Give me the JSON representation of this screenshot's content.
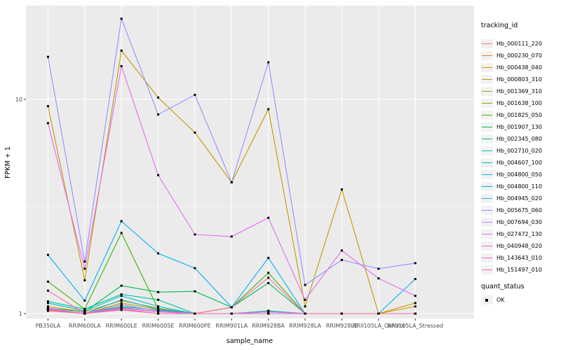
{
  "chart_data": {
    "type": "line",
    "title": "",
    "xlabel": "sample_name",
    "ylabel": "FPKM + 1",
    "y_scale": "log10",
    "y_ticks": [
      1,
      10
    ],
    "y_minor_ticks": [
      3.162
    ],
    "ylim": [
      0.95,
      27.4
    ],
    "grid": true,
    "panel_bg": "#EBEBEB",
    "grid_color": "#FFFFFF",
    "point_color": "#000000",
    "legend_position": "right",
    "categories": [
      "PB350LA",
      "RRIM600LA",
      "RRIM600LE",
      "RRIM600SE",
      "RRIM600PE",
      "RRIM901LA",
      "RRIM928BA",
      "RRIM928LA",
      "RRIM928LE",
      "RRII105LA_Control",
      "RRII105LA_Stressed"
    ],
    "legend": {
      "color_title": "tracking_id",
      "shape_title": "quant_status",
      "shape_items": [
        {
          "label": "OK"
        }
      ]
    },
    "series": [
      {
        "name": "Hb_000111_220",
        "color": "#F8766D",
        "values": [
          1.04,
          1.0,
          1.06,
          1.02,
          1.0,
          1.0,
          1.02,
          1.0,
          1.0,
          1.0,
          1.0
        ]
      },
      {
        "name": "Hb_000230_070",
        "color": "#EA8331",
        "values": [
          1.03,
          1.0,
          1.05,
          1.0,
          1.0,
          1.0,
          1.0,
          1.0,
          1.0,
          1.0,
          1.0
        ]
      },
      {
        "name": "Hb_000438_040",
        "color": "#D89000",
        "values": [
          1.08,
          1.02,
          1.15,
          1.06,
          1.0,
          1.0,
          1.03,
          1.0,
          1.0,
          1.0,
          1.12
        ]
      },
      {
        "name": "Hb_000803_310",
        "color": "#C09B00",
        "values": [
          9.3,
          1.43,
          16.9,
          10.2,
          7.0,
          4.1,
          9.0,
          1.08,
          3.8,
          1.0,
          1.08
        ]
      },
      {
        "name": "Hb_001369_310",
        "color": "#A3A500",
        "values": [
          1.06,
          1.0,
          1.12,
          1.05,
          1.0,
          1.0,
          1.02,
          1.0,
          1.0,
          1.0,
          1.0
        ]
      },
      {
        "name": "Hb_001638_100",
        "color": "#7CAE00",
        "values": [
          1.05,
          1.0,
          1.1,
          1.03,
          1.0,
          1.0,
          1.0,
          1.0,
          1.0,
          1.0,
          1.0
        ]
      },
      {
        "name": "Hb_001825_050",
        "color": "#39B600",
        "values": [
          1.41,
          1.05,
          2.38,
          1.05,
          1.0,
          1.07,
          1.55,
          1.0,
          1.0,
          1.0,
          1.0
        ]
      },
      {
        "name": "Hb_001907_130",
        "color": "#00BB4E",
        "values": [
          1.06,
          1.02,
          1.35,
          1.26,
          1.27,
          1.07,
          1.39,
          1.0,
          1.0,
          1.0,
          1.0
        ]
      },
      {
        "name": "Hb_002345_080",
        "color": "#00BF7D",
        "values": [
          1.05,
          1.0,
          1.08,
          1.04,
          1.0,
          1.0,
          1.02,
          1.0,
          1.0,
          1.0,
          1.0
        ]
      },
      {
        "name": "Hb_002710_020",
        "color": "#00C1A3",
        "values": [
          1.14,
          1.05,
          1.23,
          1.16,
          1.0,
          1.0,
          1.03,
          1.0,
          1.0,
          1.0,
          1.0
        ]
      },
      {
        "name": "Hb_004607_100",
        "color": "#00BFC4",
        "values": [
          1.12,
          1.03,
          1.21,
          1.08,
          1.0,
          1.0,
          1.0,
          1.0,
          1.0,
          1.0,
          1.0
        ]
      },
      {
        "name": "Hb_004800_050",
        "color": "#00BAE0",
        "values": [
          1.06,
          1.0,
          1.16,
          1.05,
          1.0,
          1.0,
          1.02,
          1.0,
          1.0,
          1.0,
          1.0
        ]
      },
      {
        "name": "Hb_004800_110",
        "color": "#00B0F6",
        "values": [
          1.88,
          1.15,
          2.7,
          1.91,
          1.63,
          1.07,
          1.82,
          1.0,
          1.0,
          1.0,
          1.45
        ]
      },
      {
        "name": "Hb_004945_020",
        "color": "#35A2FF",
        "values": [
          1.05,
          1.0,
          1.07,
          1.02,
          1.0,
          1.0,
          1.0,
          1.0,
          1.0,
          1.0,
          1.0
        ]
      },
      {
        "name": "Hb_005675_060",
        "color": "#9590FF",
        "values": [
          15.8,
          1.75,
          23.8,
          8.5,
          10.5,
          4.1,
          14.9,
          1.36,
          1.78,
          1.62,
          1.72
        ]
      },
      {
        "name": "Hb_007694_030",
        "color": "#C77CFF",
        "values": [
          1.06,
          1.0,
          1.1,
          1.03,
          1.0,
          1.0,
          1.02,
          1.0,
          1.0,
          1.0,
          1.0
        ]
      },
      {
        "name": "Hb_027472_130",
        "color": "#E76BF3",
        "values": [
          7.75,
          1.62,
          14.3,
          4.43,
          2.34,
          2.29,
          2.8,
          1.16,
          1.97,
          1.46,
          1.21
        ]
      },
      {
        "name": "Hb_040948_020",
        "color": "#FA62DB",
        "values": [
          1.04,
          1.0,
          1.06,
          1.02,
          1.0,
          1.0,
          1.0,
          1.0,
          1.0,
          1.0,
          1.0
        ]
      },
      {
        "name": "Hb_143643_010",
        "color": "#FF62BC",
        "values": [
          1.05,
          1.0,
          1.04,
          1.0,
          1.0,
          1.0,
          1.0,
          1.0,
          1.0,
          1.0,
          1.0
        ]
      },
      {
        "name": "Hb_151497_010",
        "color": "#FF6A98",
        "values": [
          1.28,
          1.0,
          1.05,
          1.0,
          1.0,
          1.07,
          1.47,
          1.0,
          1.0,
          1.0,
          1.0
        ]
      }
    ]
  }
}
